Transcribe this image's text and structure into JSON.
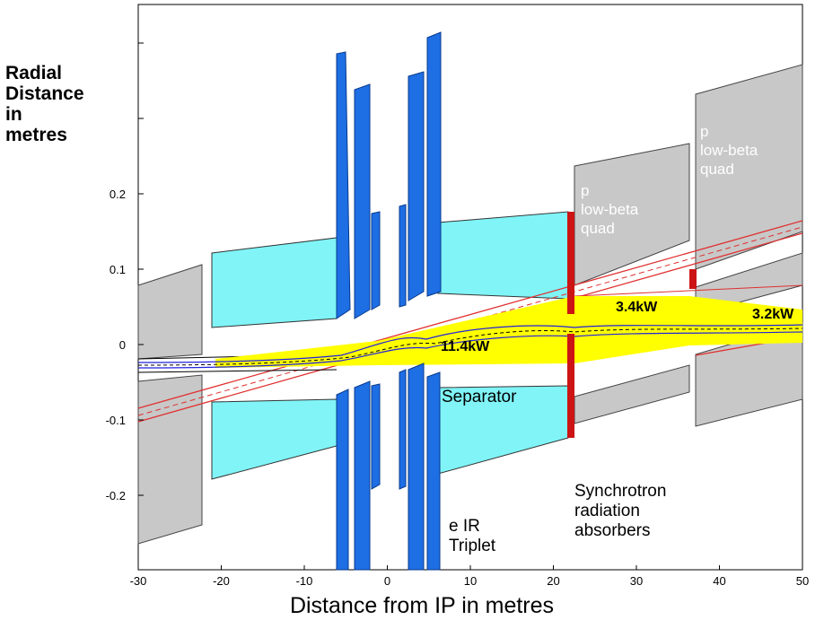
{
  "axis": {
    "y_label_lines": [
      "Radial",
      "Distance",
      "in",
      "metres"
    ],
    "x_label": "Distance from IP in metres",
    "x_ticks": [
      "-30",
      "-20",
      "-10",
      "0",
      "10",
      "20",
      "30",
      "40",
      "50"
    ],
    "y_ticks": [
      "0.2",
      "0.1",
      "0",
      "-0.1",
      "-0.2"
    ]
  },
  "labels": {
    "p_quad_1": [
      "p",
      "low-beta",
      "quad"
    ],
    "p_quad_2": [
      "p",
      "low-beta",
      "quad"
    ],
    "power_main": "11.4kW",
    "power_mid": "3.4kW",
    "power_right": "3.2kW",
    "separator": "Separator",
    "triplet": [
      "e IR",
      "Triplet"
    ],
    "absorbers": [
      "Synchrotron",
      "radiation",
      "absorbers"
    ]
  },
  "colors": {
    "gray": "#c8c8c8",
    "cyan": "#80f4f7",
    "blue": "#1e6ee4",
    "red": "#cc1414",
    "yellow": "#ffff00"
  }
}
